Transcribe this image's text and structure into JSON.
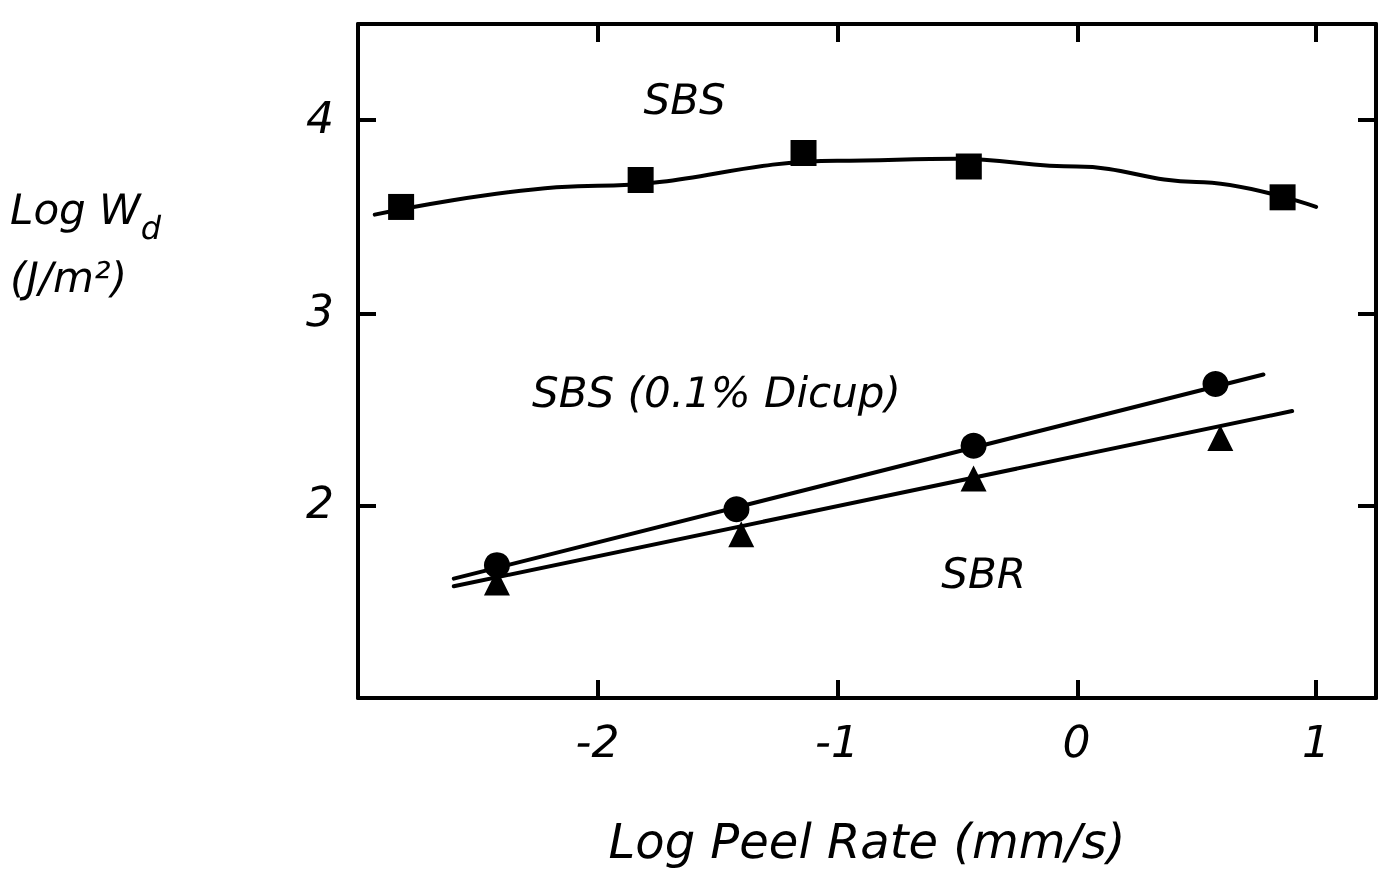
{
  "chart_data": {
    "type": "scatter",
    "xlabel": "Log Peel Rate (mm/s)",
    "ylabel": "Log W$_{d}$ (J/m²)",
    "xlim": [
      -3,
      1.25
    ],
    "xticks": [
      -2,
      -1,
      0,
      1
    ],
    "ylim": [
      1,
      4.5
    ],
    "yticks": [
      2,
      3,
      4
    ],
    "grid": false,
    "legend": false,
    "series": [
      {
        "name": "SBS",
        "color": "#000000",
        "marker": "square",
        "x": [
          -2.82,
          -1.82,
          -1.14,
          -0.45,
          0.86
        ],
        "values": [
          3.55,
          3.69,
          3.83,
          3.76,
          3.6
        ]
      },
      {
        "name": "SBS (0.1% Dicup)",
        "color": "#000000",
        "marker": "circle",
        "x": [
          -2.42,
          -1.42,
          -0.43,
          0.58
        ],
        "values": [
          1.69,
          1.98,
          2.31,
          2.63
        ]
      },
      {
        "name": "SBR",
        "color": "#000000",
        "marker": "triangle",
        "x": [
          -2.42,
          -1.4,
          -0.43,
          0.6
        ],
        "values": [
          1.6,
          1.85,
          2.14,
          2.35
        ]
      },
      {
        "type": "line",
        "color": "#000000",
        "marker": "none",
        "x": [
          -2.93,
          -2,
          -1,
          -0.5,
          0,
          0.5,
          1
        ],
        "values": [
          3.51,
          3.66,
          3.79,
          3.8,
          3.76,
          3.68,
          3.55
        ]
      },
      {
        "type": "line",
        "color": "#000000",
        "marker": "none",
        "x": [
          -2.6,
          0.78
        ],
        "values": [
          1.62,
          2.68
        ]
      },
      {
        "type": "line",
        "color": "#000000",
        "marker": "none",
        "x": [
          -2.6,
          0.9
        ],
        "values": [
          1.58,
          2.49
        ]
      }
    ]
  }
}
